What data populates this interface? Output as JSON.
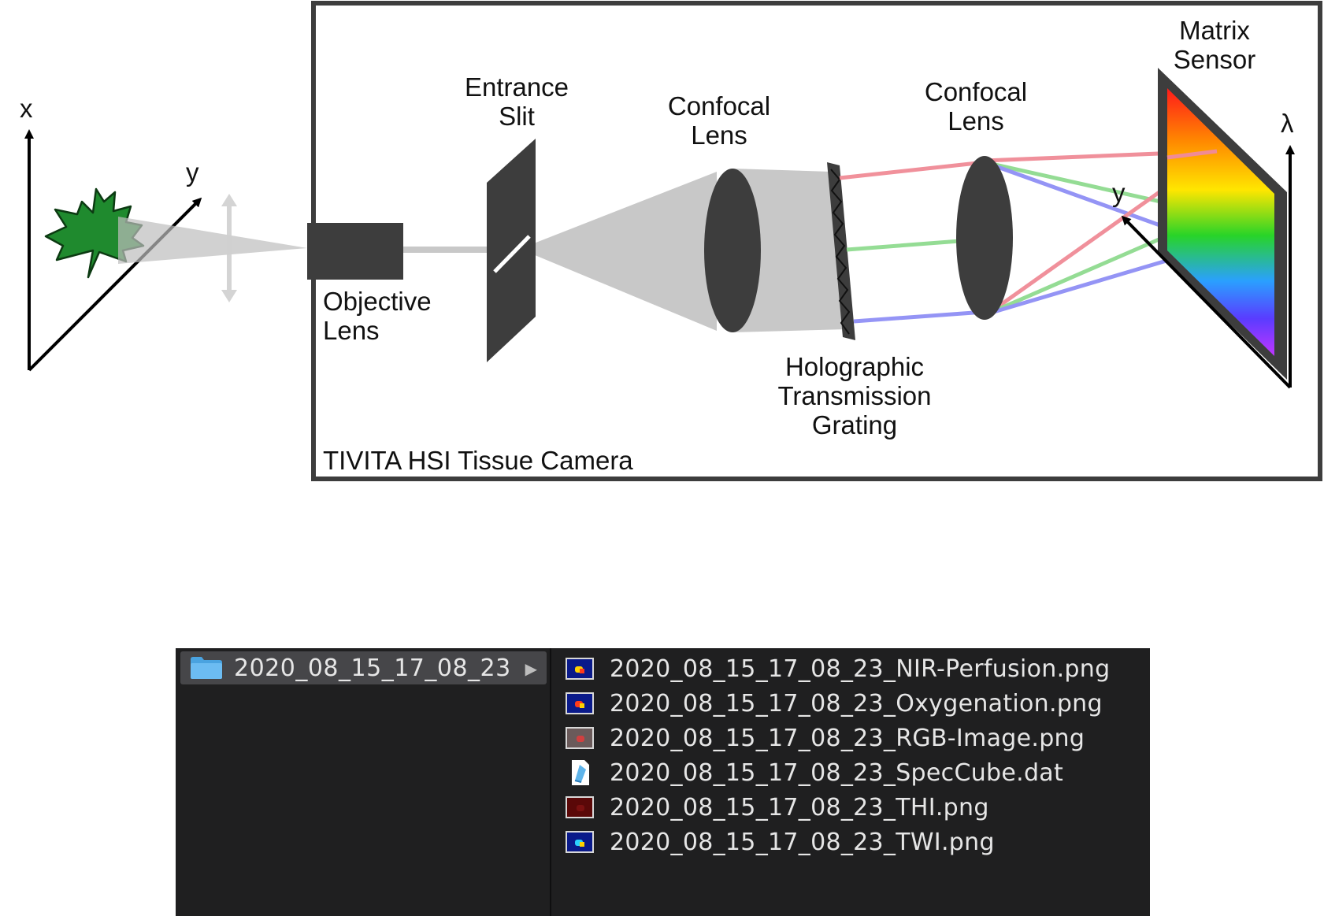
{
  "diagram": {
    "axes_left": {
      "x": "x",
      "y": "y"
    },
    "camera_title": "TIVITA HSI Tissue Camera",
    "objective_lens": [
      "Objective",
      "Lens"
    ],
    "entrance_slit": [
      "Entrance",
      "Slit"
    ],
    "confocal_lens_1": [
      "Confocal",
      "Lens"
    ],
    "confocal_lens_2": [
      "Confocal",
      "Lens"
    ],
    "grating": [
      "Holographic",
      "Transmission",
      "Grating"
    ],
    "matrix_sensor": [
      "Matrix",
      "Sensor"
    ],
    "sensor_axes": {
      "y": "y",
      "lambda": "λ"
    },
    "colors": {
      "red": "#f08b96",
      "green": "#8fdb8f",
      "blue": "#8f8ff5",
      "housing": "#3d3d3d",
      "beam": "#c8c8c8",
      "leaf": "#1f8a2e"
    }
  },
  "finder": {
    "folder": {
      "name": "2020_08_15_17_08_23",
      "icon": "folder-icon",
      "chevron": "▶"
    },
    "files": [
      {
        "name": "2020_08_15_17_08_23_NIR-Perfusion.png",
        "icon": "image-thumbnail-icon"
      },
      {
        "name": "2020_08_15_17_08_23_Oxygenation.png",
        "icon": "image-thumbnail-icon"
      },
      {
        "name": "2020_08_15_17_08_23_RGB-Image.png",
        "icon": "image-thumbnail-icon"
      },
      {
        "name": "2020_08_15_17_08_23_SpecCube.dat",
        "icon": "data-file-icon"
      },
      {
        "name": "2020_08_15_17_08_23_THI.png",
        "icon": "image-thumbnail-icon"
      },
      {
        "name": "2020_08_15_17_08_23_TWI.png",
        "icon": "image-thumbnail-icon"
      }
    ]
  }
}
